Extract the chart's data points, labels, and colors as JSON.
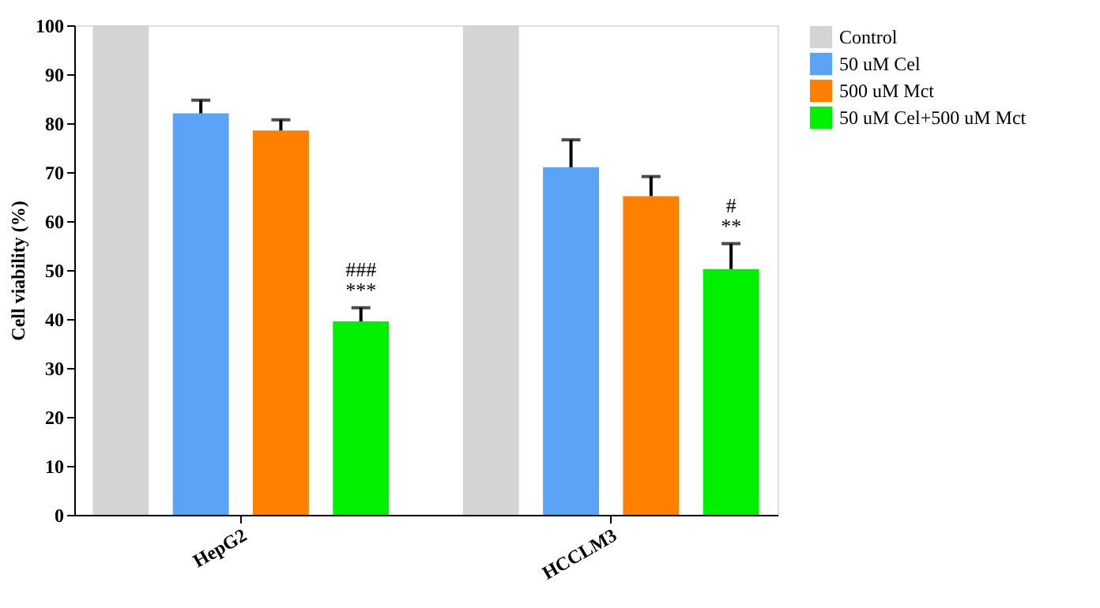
{
  "chart_data": {
    "type": "bar",
    "ylabel": "Cell viability (%)",
    "categories": [
      "HepG2",
      "HCCLM3"
    ],
    "series": [
      {
        "name": "Control",
        "color": "#d4d4d4",
        "values": [
          100,
          100
        ]
      },
      {
        "name": "50 uM Cel",
        "color": "#5ba3f5",
        "values": [
          82,
          71
        ],
        "errors": [
          2.7,
          5.6
        ]
      },
      {
        "name": "500 uM Mct",
        "color": "#ff8000",
        "values": [
          78.5,
          65.1
        ],
        "errors": [
          2.2,
          4
        ]
      },
      {
        "name": "50 uM Cel+500 uM Mct",
        "color": "#00f000",
        "values": [
          39.5,
          50.2
        ],
        "errors": [
          2.8,
          5.2
        ]
      }
    ],
    "ylim": [
      0,
      100
    ],
    "yticks": [
      0,
      10,
      20,
      30,
      40,
      50,
      60,
      70,
      80,
      90,
      100
    ],
    "grid": false,
    "legend": "right",
    "annotations": [
      "***",
      "###",
      "**",
      "#"
    ]
  }
}
